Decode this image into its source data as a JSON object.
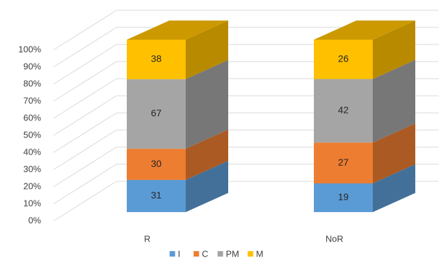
{
  "chart_data": {
    "type": "bar",
    "stacked": "percent",
    "categories": [
      "R",
      "NoR"
    ],
    "series": [
      {
        "name": "I",
        "color": "#5b9bd5",
        "values": [
          31,
          19
        ]
      },
      {
        "name": "C",
        "color": "#ed7d31",
        "values": [
          30,
          27
        ]
      },
      {
        "name": "PM",
        "color": "#a5a5a5",
        "values": [
          67,
          42
        ]
      },
      {
        "name": "M",
        "color": "#ffc000",
        "values": [
          38,
          26
        ]
      }
    ],
    "ylim": [
      0,
      100
    ],
    "yticks": [
      {
        "value": 0,
        "label": "0%"
      },
      {
        "value": 10,
        "label": "10%"
      },
      {
        "value": 20,
        "label": "20%"
      },
      {
        "value": 30,
        "label": "30%"
      },
      {
        "value": 40,
        "label": "40%"
      },
      {
        "value": 50,
        "label": "50%"
      },
      {
        "value": 60,
        "label": "60%"
      },
      {
        "value": 70,
        "label": "70%"
      },
      {
        "value": 80,
        "label": "80%"
      },
      {
        "value": 90,
        "label": "90%"
      },
      {
        "value": 100,
        "label": "100%"
      }
    ],
    "grid": true,
    "legend": "bottom"
  }
}
